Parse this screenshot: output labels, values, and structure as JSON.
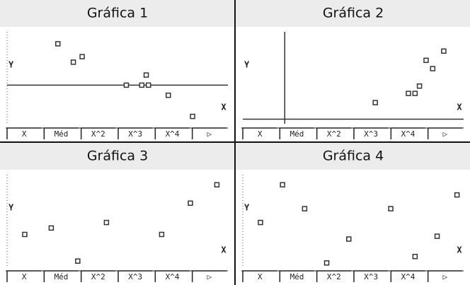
{
  "chart_data": [
    {
      "type": "scatter",
      "title": "Gráfica 1",
      "x_label": "X",
      "y_label": "Y",
      "color": "#333333",
      "x": [
        23,
        30,
        34,
        54,
        61,
        64,
        63,
        73,
        84
      ],
      "y": [
        45,
        25,
        31,
        0,
        0,
        0,
        11,
        -11,
        -34
      ],
      "xlim": [
        0,
        100
      ],
      "ylim": [
        -42,
        58
      ]
    },
    {
      "type": "scatter",
      "title": "Gráfica 2",
      "x_label": "X",
      "y_label": "Y",
      "color": "#333333",
      "x": [
        41,
        56,
        59,
        61,
        64,
        67,
        72
      ],
      "y": [
        18,
        28,
        28,
        36,
        64,
        55,
        74
      ],
      "xlim": [
        -19,
        81
      ],
      "ylim": [
        -5,
        95
      ]
    },
    {
      "type": "scatter",
      "title": "Gráfica 3",
      "x_label": "X",
      "y_label": "Y",
      "color": "#333333",
      "x": [
        8,
        20,
        32,
        45,
        70,
        83,
        95
      ],
      "y": [
        35,
        42,
        6,
        48,
        35,
        69,
        89
      ],
      "xlim": [
        0,
        100
      ],
      "ylim": [
        0,
        100
      ]
    },
    {
      "type": "scatter",
      "title": "Gráfica 4",
      "x_label": "X",
      "y_label": "Y",
      "color": "#333333",
      "x": [
        8,
        18,
        28,
        38,
        48,
        67,
        78,
        88,
        97
      ],
      "y": [
        48,
        89,
        63,
        4,
        30,
        63,
        11,
        33,
        78
      ],
      "xlim": [
        0,
        100
      ],
      "ylim": [
        0,
        100
      ]
    }
  ],
  "menu": [
    "X",
    "Méd",
    "X^2",
    "X^3",
    "X^4",
    "▷"
  ]
}
